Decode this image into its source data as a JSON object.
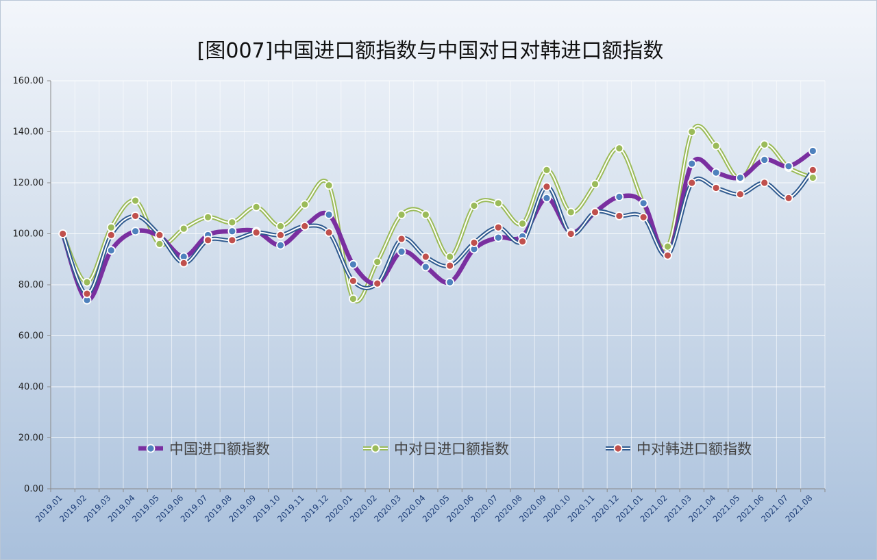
{
  "chart_data": {
    "type": "line",
    "title": "[图007]中国进口额指数与中国对日对韩进口额指数",
    "xlabel": "",
    "ylabel": "",
    "ylim": [
      0,
      160
    ],
    "yticks": [
      "0.00",
      "20.00",
      "40.00",
      "60.00",
      "80.00",
      "100.00",
      "120.00",
      "140.00",
      "160.00"
    ],
    "grid": true,
    "legend_position": "bottom-inside",
    "categories": [
      "2019.01",
      "2019.02",
      "2019.03",
      "2019.04",
      "2019.05",
      "2019.06",
      "2019.07",
      "2019.08",
      "2019.09",
      "2019.10",
      "2019.11",
      "2019.12",
      "2020.01",
      "2020.02",
      "2020.03",
      "2020.04",
      "2020.05",
      "2020.06",
      "2020.07",
      "2020.08",
      "2020.09",
      "2020.10",
      "2020.11",
      "2020.12",
      "2021.01",
      "2021.02",
      "2021.03",
      "2021.04",
      "2021.05",
      "2021.06",
      "2021.07",
      "2021.08"
    ],
    "series": [
      {
        "name": "中国进口额指数",
        "style": "thick",
        "line_color": "#7a2fa0",
        "marker_color": "#4e81bd",
        "values": [
          100,
          74,
          93.5,
          101,
          99,
          91,
          99.5,
          101,
          101,
          95.5,
          103,
          107.5,
          88,
          80.5,
          93,
          87,
          81,
          94,
          98.5,
          99,
          114,
          100.5,
          108.5,
          114.5,
          112,
          91.5,
          127.5,
          124,
          122,
          129,
          126.5,
          132.5
        ]
      },
      {
        "name": "中对日进口额指数",
        "style": "double",
        "line_color": "#9bbb59",
        "marker_color": "#9bbb59",
        "values": [
          100,
          81,
          102.5,
          113,
          96,
          102,
          106.5,
          104.5,
          110.5,
          103,
          111.5,
          119,
          74.5,
          89,
          107.5,
          107.5,
          91,
          111,
          112,
          104,
          125,
          108.5,
          119.5,
          133.5,
          112,
          95,
          140,
          134.5,
          121.5,
          135,
          126,
          122
        ]
      },
      {
        "name": "中对韩进口额指数",
        "style": "double",
        "line_color": "#2f5a8f",
        "marker_color": "#c0504d",
        "values": [
          100,
          76.5,
          99.5,
          107,
          99.5,
          88.5,
          97.5,
          97.5,
          100.5,
          99.5,
          103,
          100.5,
          81.5,
          80.5,
          98,
          91,
          87.5,
          96.5,
          102.5,
          97,
          118.5,
          100,
          108.5,
          107,
          106.5,
          91.5,
          120,
          118,
          115.5,
          120,
          114,
          125
        ]
      }
    ]
  }
}
